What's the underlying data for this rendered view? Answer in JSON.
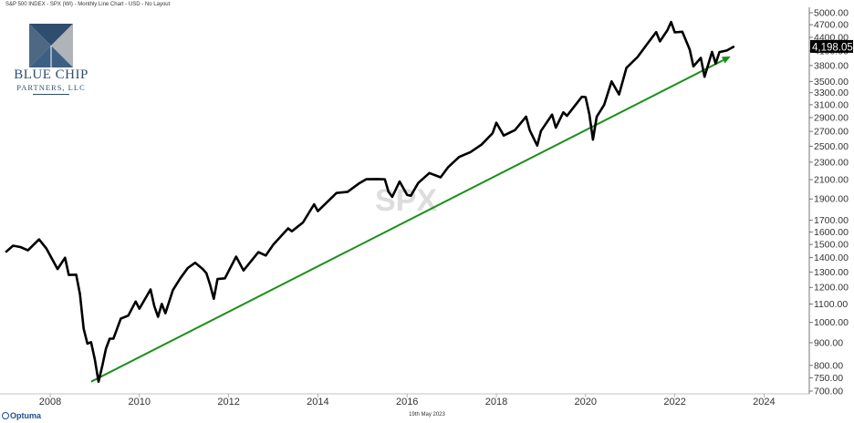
{
  "header": {
    "title": "S&P 500 INDEX - SPX (WI) - Monthly Line Chart - USD - No Layout"
  },
  "logo": {
    "name_line1": "BLUE CHIP",
    "name_line2": "PARTNERS, LLC"
  },
  "footer": {
    "brand": "Optuma",
    "date": "19th May 2023"
  },
  "watermark": "SPX",
  "colors": {
    "price_line": "#000000",
    "trend_line": "#1a8f1a",
    "axis_text": "#333333",
    "last_price_bg": "#000000",
    "last_price_text": "#ffffff",
    "logo_blue": "#2f4d6e",
    "logo_gray": "#b0b4b8"
  },
  "chart_data": {
    "type": "line",
    "scale": "log",
    "ylim": [
      700,
      5000
    ],
    "y_ticks": [
      700,
      750,
      800,
      900,
      1000,
      1100,
      1200,
      1300,
      1400,
      1500,
      1600,
      1700,
      1900,
      2100,
      2300,
      2500,
      2700,
      2900,
      3100,
      3300,
      3500,
      3800,
      4100,
      4400,
      4700,
      5000
    ],
    "y_tick_labels": [
      "700.00",
      "750.00",
      "800.00",
      "900.00",
      "1000.00",
      "1100.00",
      "1200.00",
      "1300.00",
      "1400.00",
      "1500.00",
      "1600.00",
      "1700.00",
      "1900.00",
      "2100.00",
      "2300.00",
      "2500.00",
      "2700.00",
      "2900.00",
      "3100.00",
      "3300.00",
      "3500.00",
      "3800.00",
      "4100.00",
      "4400.00",
      "4700.00",
      "5000.00"
    ],
    "x_ticks": [
      "2008",
      "2010",
      "2012",
      "2014",
      "2016",
      "2018",
      "2020",
      "2022",
      "2024"
    ],
    "last_price_label": "4,198.05",
    "last_value": 4198,
    "series": [
      {
        "points": [
          [
            "2007-01",
            1440
          ],
          [
            "2007-03",
            1490
          ],
          [
            "2007-05",
            1480
          ],
          [
            "2007-07",
            1455
          ],
          [
            "2007-10",
            1540
          ],
          [
            "2007-12",
            1468
          ],
          [
            "2008-03",
            1320
          ],
          [
            "2008-05",
            1400
          ],
          [
            "2008-06",
            1280
          ],
          [
            "2008-08",
            1282
          ],
          [
            "2008-09",
            1160
          ],
          [
            "2008-10",
            968
          ],
          [
            "2008-11",
            896
          ],
          [
            "2008-12",
            903
          ],
          [
            "2009-01",
            826
          ],
          [
            "2009-02",
            735
          ],
          [
            "2009-03",
            798
          ],
          [
            "2009-04",
            872
          ],
          [
            "2009-05",
            919
          ],
          [
            "2009-06",
            919
          ],
          [
            "2009-08",
            1020
          ],
          [
            "2009-10",
            1036
          ],
          [
            "2009-12",
            1115
          ],
          [
            "2010-01",
            1074
          ],
          [
            "2010-04",
            1187
          ],
          [
            "2010-05",
            1089
          ],
          [
            "2010-06",
            1030
          ],
          [
            "2010-07",
            1101
          ],
          [
            "2010-08",
            1049
          ],
          [
            "2010-10",
            1183
          ],
          [
            "2010-12",
            1258
          ],
          [
            "2011-02",
            1327
          ],
          [
            "2011-04",
            1364
          ],
          [
            "2011-06",
            1321
          ],
          [
            "2011-07",
            1292
          ],
          [
            "2011-08",
            1218
          ],
          [
            "2011-09",
            1131
          ],
          [
            "2011-10",
            1253
          ],
          [
            "2011-12",
            1258
          ],
          [
            "2012-03",
            1408
          ],
          [
            "2012-05",
            1310
          ],
          [
            "2012-09",
            1441
          ],
          [
            "2012-11",
            1416
          ],
          [
            "2013-01",
            1498
          ],
          [
            "2013-05",
            1631
          ],
          [
            "2013-06",
            1606
          ],
          [
            "2013-09",
            1682
          ],
          [
            "2013-12",
            1848
          ],
          [
            "2014-01",
            1783
          ],
          [
            "2014-06",
            1960
          ],
          [
            "2014-09",
            1972
          ],
          [
            "2014-12",
            2058
          ],
          [
            "2015-02",
            2105
          ],
          [
            "2015-05",
            2107
          ],
          [
            "2015-07",
            2104
          ],
          [
            "2015-08",
            1972
          ],
          [
            "2015-09",
            1920
          ],
          [
            "2015-11",
            2080
          ],
          [
            "2016-01",
            1940
          ],
          [
            "2016-02",
            1932
          ],
          [
            "2016-04",
            2065
          ],
          [
            "2016-07",
            2174
          ],
          [
            "2016-10",
            2126
          ],
          [
            "2016-12",
            2239
          ],
          [
            "2017-03",
            2363
          ],
          [
            "2017-06",
            2423
          ],
          [
            "2017-09",
            2519
          ],
          [
            "2017-12",
            2674
          ],
          [
            "2018-01",
            2824
          ],
          [
            "2018-03",
            2641
          ],
          [
            "2018-06",
            2718
          ],
          [
            "2018-09",
            2914
          ],
          [
            "2018-10",
            2712
          ],
          [
            "2018-12",
            2507
          ],
          [
            "2019-01",
            2704
          ],
          [
            "2019-04",
            2946
          ],
          [
            "2019-05",
            2752
          ],
          [
            "2019-07",
            2980
          ],
          [
            "2019-08",
            2926
          ],
          [
            "2019-12",
            3231
          ],
          [
            "2020-01",
            3226
          ],
          [
            "2020-02",
            2954
          ],
          [
            "2020-03",
            2585
          ],
          [
            "2020-04",
            2912
          ],
          [
            "2020-06",
            3100
          ],
          [
            "2020-08",
            3500
          ],
          [
            "2020-10",
            3270
          ],
          [
            "2020-12",
            3756
          ],
          [
            "2021-03",
            3973
          ],
          [
            "2021-06",
            4298
          ],
          [
            "2021-08",
            4523
          ],
          [
            "2021-09",
            4308
          ],
          [
            "2021-11",
            4567
          ],
          [
            "2021-12",
            4766
          ],
          [
            "2022-01",
            4516
          ],
          [
            "2022-03",
            4530
          ],
          [
            "2022-05",
            4132
          ],
          [
            "2022-06",
            3785
          ],
          [
            "2022-08",
            3955
          ],
          [
            "2022-09",
            3586
          ],
          [
            "2022-11",
            4080
          ],
          [
            "2022-12",
            3840
          ],
          [
            "2023-01",
            4077
          ],
          [
            "2023-03",
            4109
          ],
          [
            "2023-05",
            4198
          ]
        ]
      }
    ],
    "trend_line": {
      "from": [
        "2008-12",
        735
      ],
      "to": [
        "2023-04",
        3985
      ]
    }
  }
}
